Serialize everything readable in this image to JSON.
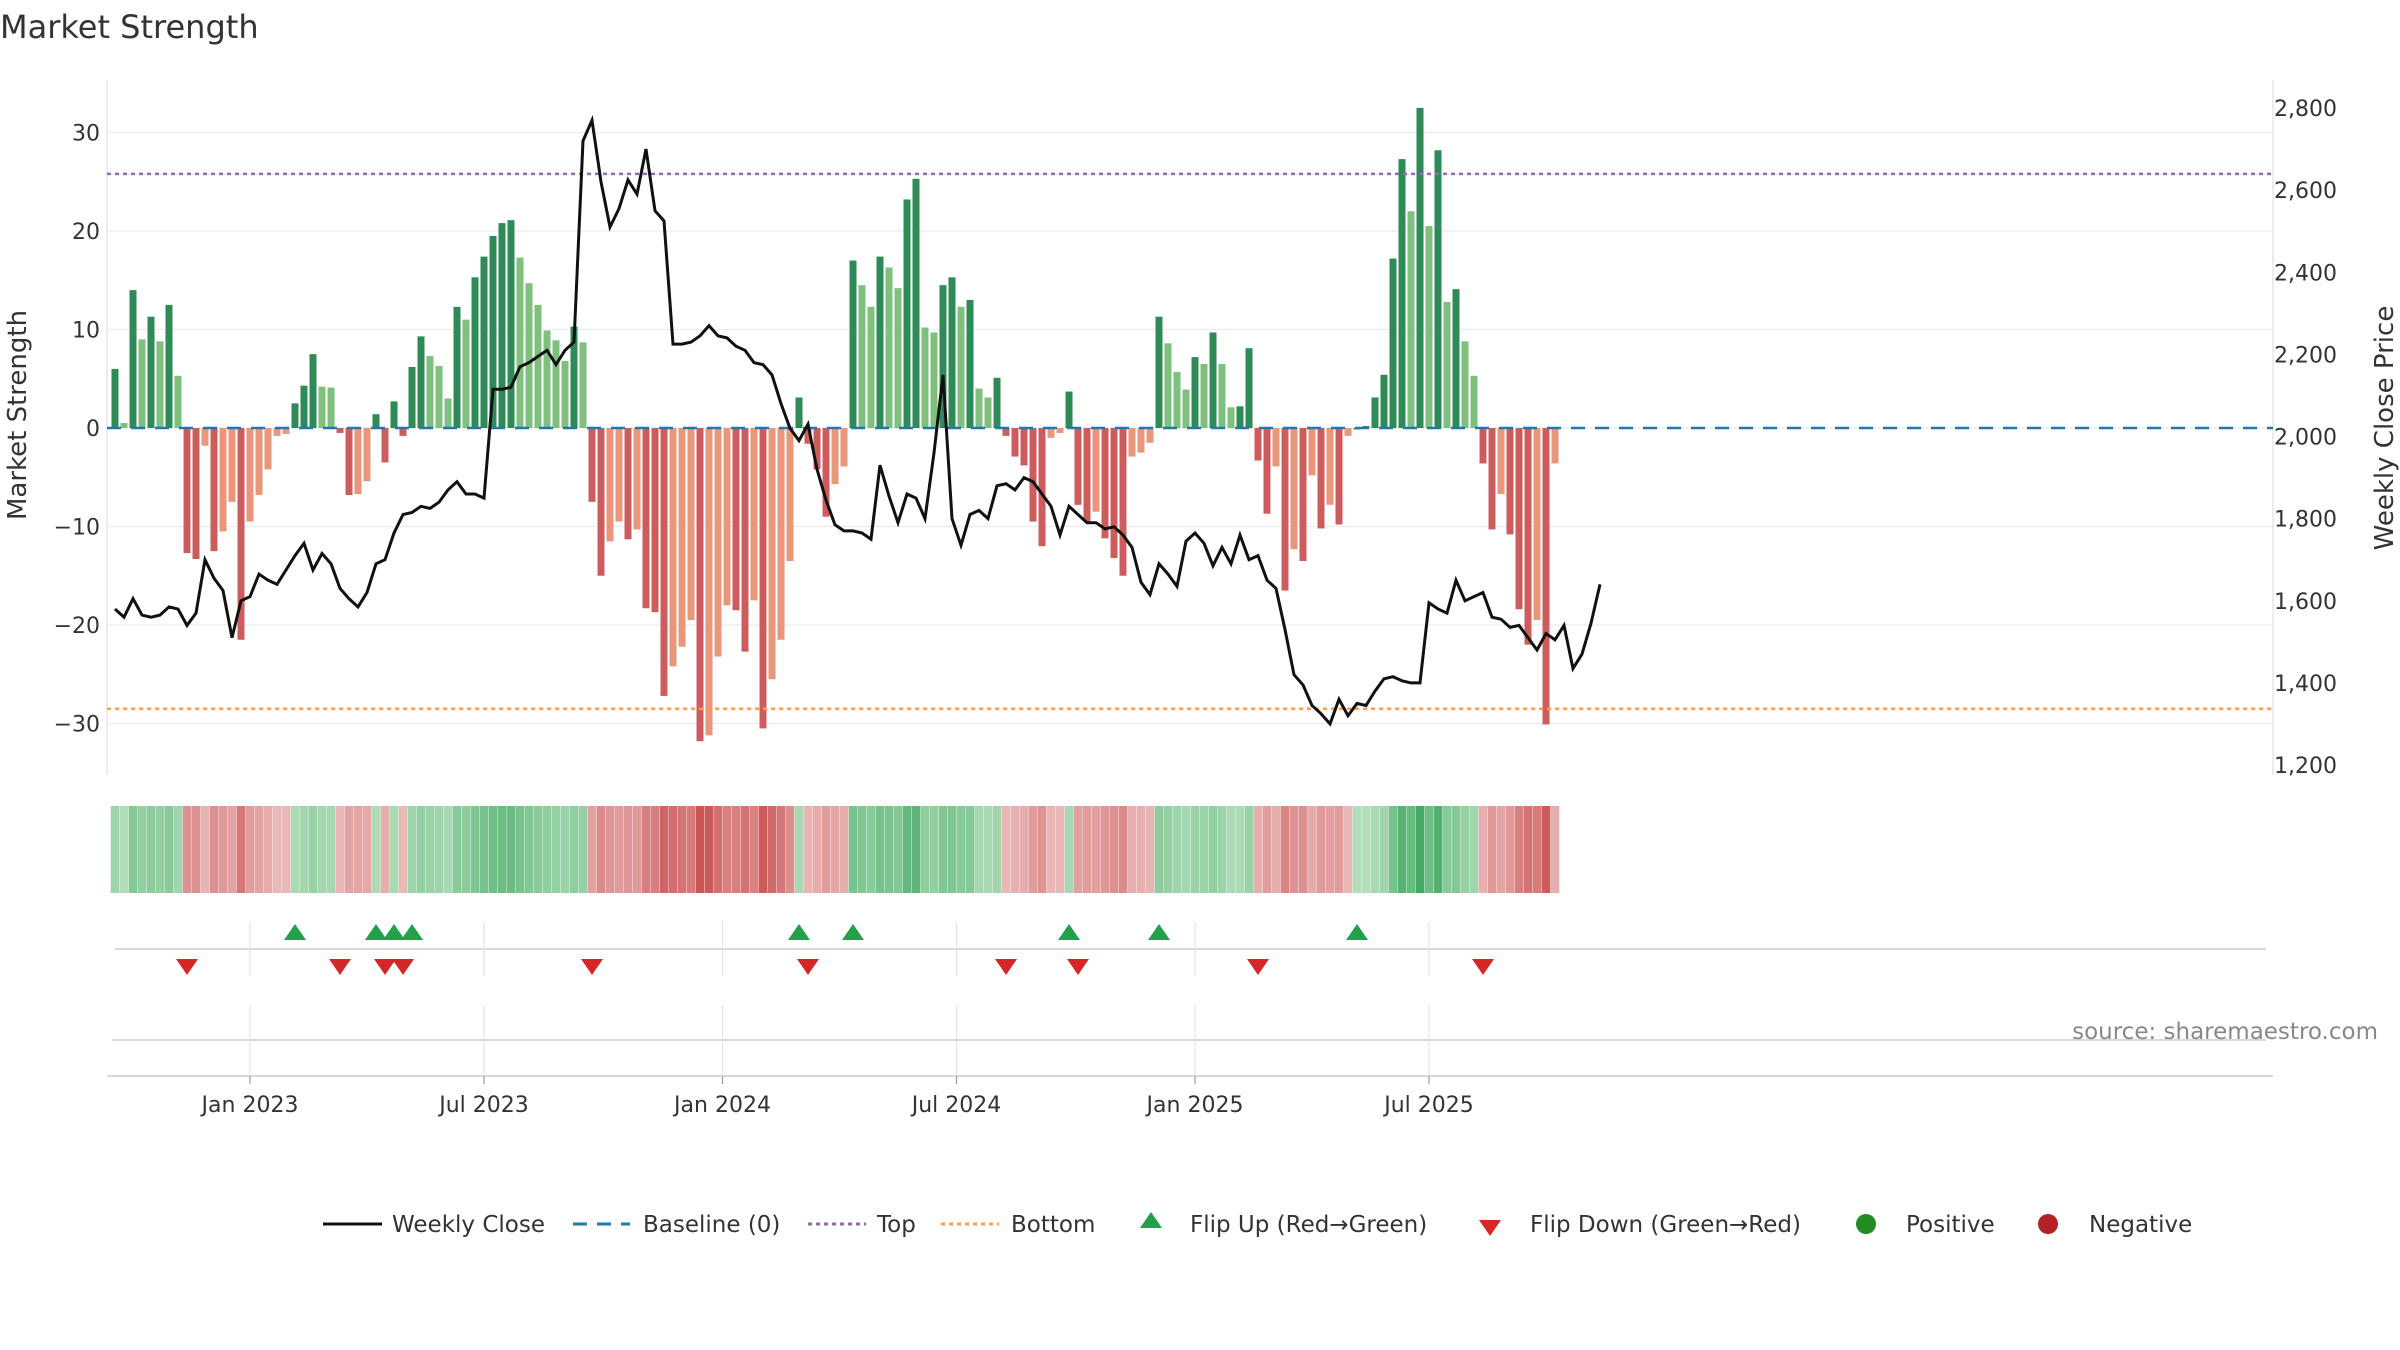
{
  "chart_data": {
    "type": "bar",
    "title": "Market Strength",
    "ylabel_left": "Market Strength",
    "ylabel_right": "Weekly Close Price",
    "ylim_left": [
      -35,
      36
    ],
    "ylim_right": [
      1200,
      2800
    ],
    "left_ticks": [
      30,
      20,
      10,
      0,
      -10,
      -20,
      -30
    ],
    "left_tick_labels": [
      "30",
      "20",
      "10",
      "0",
      "−10",
      "−20",
      "−30"
    ],
    "right_ticks": [
      1200,
      1400,
      1600,
      1800,
      2000,
      2200,
      2400,
      2600,
      2800
    ],
    "right_tick_labels": [
      "1,200",
      "1,400",
      "1,600",
      "1,800",
      "2,000",
      "2,200",
      "2,400",
      "2,600",
      "2,800"
    ],
    "x_tick_labels": [
      "Jan 2023",
      "Jul 2023",
      "Jan 2024",
      "Jul 2024",
      "Jan 2025",
      "Jul 2025"
    ],
    "x_tick_weeks": [
      15,
      41,
      67.5,
      93.5,
      120,
      146
    ],
    "top_level": 25.8,
    "bottom_level": -28.5,
    "strength": [
      6,
      0.5,
      14,
      9,
      11.3,
      8.8,
      12.5,
      5.3,
      -12.7,
      -13.3,
      -1.8,
      -12.5,
      -10.5,
      -7.5,
      -21.5,
      -9.5,
      -6.8,
      -4.2,
      -0.8,
      -0.6,
      2.5,
      4.3,
      7.5,
      4.2,
      4.1,
      -0.5,
      -6.8,
      -6.7,
      -5.4,
      1.4,
      -3.5,
      2.7,
      -0.8,
      6.2,
      9.3,
      7.3,
      6.3,
      3,
      12.3,
      11,
      15.3,
      17.4,
      19.5,
      20.8,
      21.1,
      17.3,
      14.7,
      12.5,
      9.9,
      8.9,
      6.8,
      10.3,
      8.7,
      -7.5,
      -15,
      -11.5,
      -9.5,
      -11.3,
      -10.3,
      -18.3,
      -18.7,
      -27.2,
      -24.2,
      -22.2,
      -19.5,
      -31.8,
      -31.2,
      -23.2,
      -18,
      -18.5,
      -22.7,
      -17.5,
      -30.5,
      -25.5,
      -21.5,
      -13.5,
      3.1,
      -1.6,
      -4.2,
      -9,
      -5.7,
      -3.9,
      17,
      14.5,
      12.3,
      17.4,
      16.3,
      14.2,
      23.2,
      25.3,
      10.2,
      9.7,
      14.5,
      15.3,
      12.3,
      13,
      4,
      3.1,
      5.1,
      -0.8,
      -2.9,
      -3.8,
      -9.5,
      -12,
      -1,
      -0.5,
      3.7,
      -7.8,
      -9.5,
      -8.5,
      -11.2,
      -13.2,
      -15,
      -2.9,
      -2.5,
      -1.5,
      11.3,
      8.6,
      5.7,
      3.9,
      7.2,
      6.5,
      9.7,
      6.5,
      2.1,
      2.2,
      8.1,
      -3.3,
      -8.7,
      -3.9,
      -16.5,
      -12.3,
      -13.5,
      -4.8,
      -10.2,
      -7.8,
      -9.8,
      -0.8,
      0,
      0.2,
      3.1,
      5.4,
      17.2,
      27.3,
      22,
      32.5,
      20.5,
      28.2,
      12.8,
      14.1,
      8.8,
      5.3,
      -3.6,
      -10.3,
      -6.7,
      -10.8,
      -18.4,
      -22,
      -19.5,
      -30.1,
      -3.6
    ],
    "weekly_close": [
      1580,
      1560,
      1605,
      1565,
      1560,
      1565,
      1585,
      1580,
      1540,
      1570,
      1700,
      1655,
      1625,
      1510,
      1600,
      1610,
      1665,
      1650,
      1640,
      1675,
      1710,
      1740,
      1675,
      1715,
      1690,
      1630,
      1605,
      1585,
      1620,
      1690,
      1700,
      1765,
      1810,
      1815,
      1830,
      1825,
      1840,
      1870,
      1890,
      1860,
      1860,
      1850,
      2115,
      2115,
      2120,
      2170,
      2180,
      2195,
      2210,
      2175,
      2210,
      2230,
      2720,
      2770,
      2620,
      2510,
      2555,
      2625,
      2590,
      2700,
      2550,
      2525,
      2225,
      2225,
      2230,
      2245,
      2270,
      2245,
      2240,
      2220,
      2210,
      2180,
      2175,
      2150,
      2080,
      2020,
      1990,
      2030,
      1920,
      1845,
      1785,
      1770,
      1770,
      1765,
      1750,
      1930,
      1855,
      1790,
      1860,
      1850,
      1800,
      1960,
      2150,
      1800,
      1735,
      1810,
      1820,
      1800,
      1880,
      1885,
      1870,
      1900,
      1890,
      1860,
      1830,
      1760,
      1830,
      1810,
      1790,
      1790,
      1775,
      1780,
      1760,
      1730,
      1645,
      1615,
      1690,
      1665,
      1635,
      1745,
      1765,
      1740,
      1685,
      1730,
      1690,
      1760,
      1700,
      1710,
      1650,
      1630,
      1530,
      1420,
      1395,
      1345,
      1325,
      1300,
      1360,
      1320,
      1350,
      1345,
      1380,
      1410,
      1415,
      1405,
      1400,
      1400,
      1595,
      1580,
      1570,
      1650,
      1600,
      1610,
      1620,
      1560,
      1555,
      1535,
      1540,
      1510,
      1480,
      1520,
      1505,
      1540,
      1435,
      1470,
      1545,
      1640
    ]
  },
  "legend": {
    "items": [
      {
        "label": "Weekly Close"
      },
      {
        "label": "Baseline (0)"
      },
      {
        "label": "Top"
      },
      {
        "label": "Bottom"
      },
      {
        "label": "Flip Up (Red→Green)"
      },
      {
        "label": "Flip Down (Green→Red)"
      },
      {
        "label": "Positive"
      },
      {
        "label": "Negative"
      }
    ]
  },
  "source_text": "source: sharemaestro.com",
  "colors": {
    "close_line": "#111111",
    "baseline": "#1f77b4",
    "top_line": "#9467bd",
    "bottom_line": "#ff9f40",
    "flip_up": "#22a04a",
    "flip_down": "#d62728",
    "positive": "#228b22",
    "negative": "#b22222",
    "pos_strong": "#2e8b57",
    "pos_weak": "#7fc07f",
    "neg_strong": "#cd5c5c",
    "neg_weak": "#e9967a"
  }
}
